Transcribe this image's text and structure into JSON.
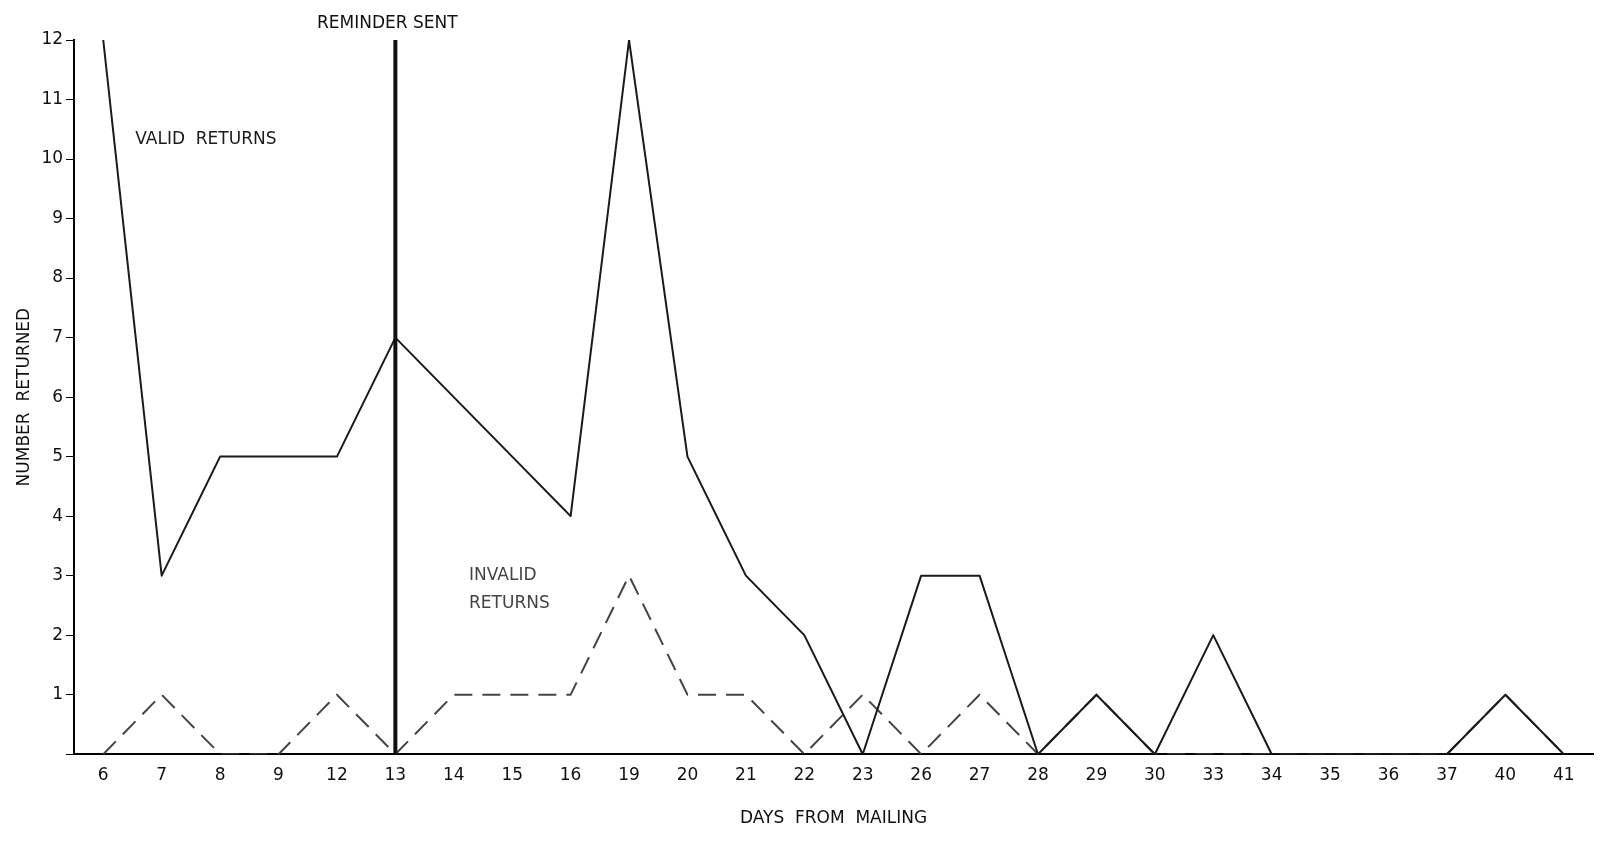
{
  "chart_data": {
    "type": "line",
    "xlabel": "DAYS  FROM  MAILING",
    "ylabel": "NUMBER  RETURNED",
    "categories": [
      "6",
      "7",
      "8",
      "9",
      "12",
      "13",
      "14",
      "15",
      "16",
      "19",
      "20",
      "21",
      "22",
      "23",
      "26",
      "27",
      "28",
      "29",
      "30",
      "33",
      "34",
      "35",
      "36",
      "37",
      "40",
      "41"
    ],
    "series": [
      {
        "name": "VALID  RETURNS",
        "color": "#1a1a1a",
        "line_style": "solid",
        "values": [
          12,
          3,
          5,
          5,
          5,
          7,
          6,
          5,
          4,
          12,
          5,
          3,
          2,
          0,
          3,
          3,
          0,
          1,
          0,
          2,
          0,
          0,
          0,
          0,
          1,
          0
        ]
      },
      {
        "name": "INVALID RETURNS",
        "color": "#444444",
        "line_style": "dashed",
        "values": [
          0,
          1,
          0,
          0,
          1,
          0,
          1,
          1,
          1,
          3,
          1,
          1,
          0,
          1,
          0,
          1,
          0,
          1,
          0,
          0,
          0,
          0,
          0,
          0,
          1,
          0
        ]
      }
    ],
    "ylim": [
      0,
      12
    ],
    "yticks": [
      {
        "value": 0,
        "label": null
      },
      1,
      2,
      3,
      4,
      5,
      6,
      7,
      8,
      9,
      10,
      11,
      12
    ],
    "ref_lines": [
      {
        "axis": "x",
        "value": "13",
        "label": "REMINDER SENT",
        "color": "#111111"
      }
    ],
    "grid": false,
    "legend": false,
    "marker": "none"
  }
}
